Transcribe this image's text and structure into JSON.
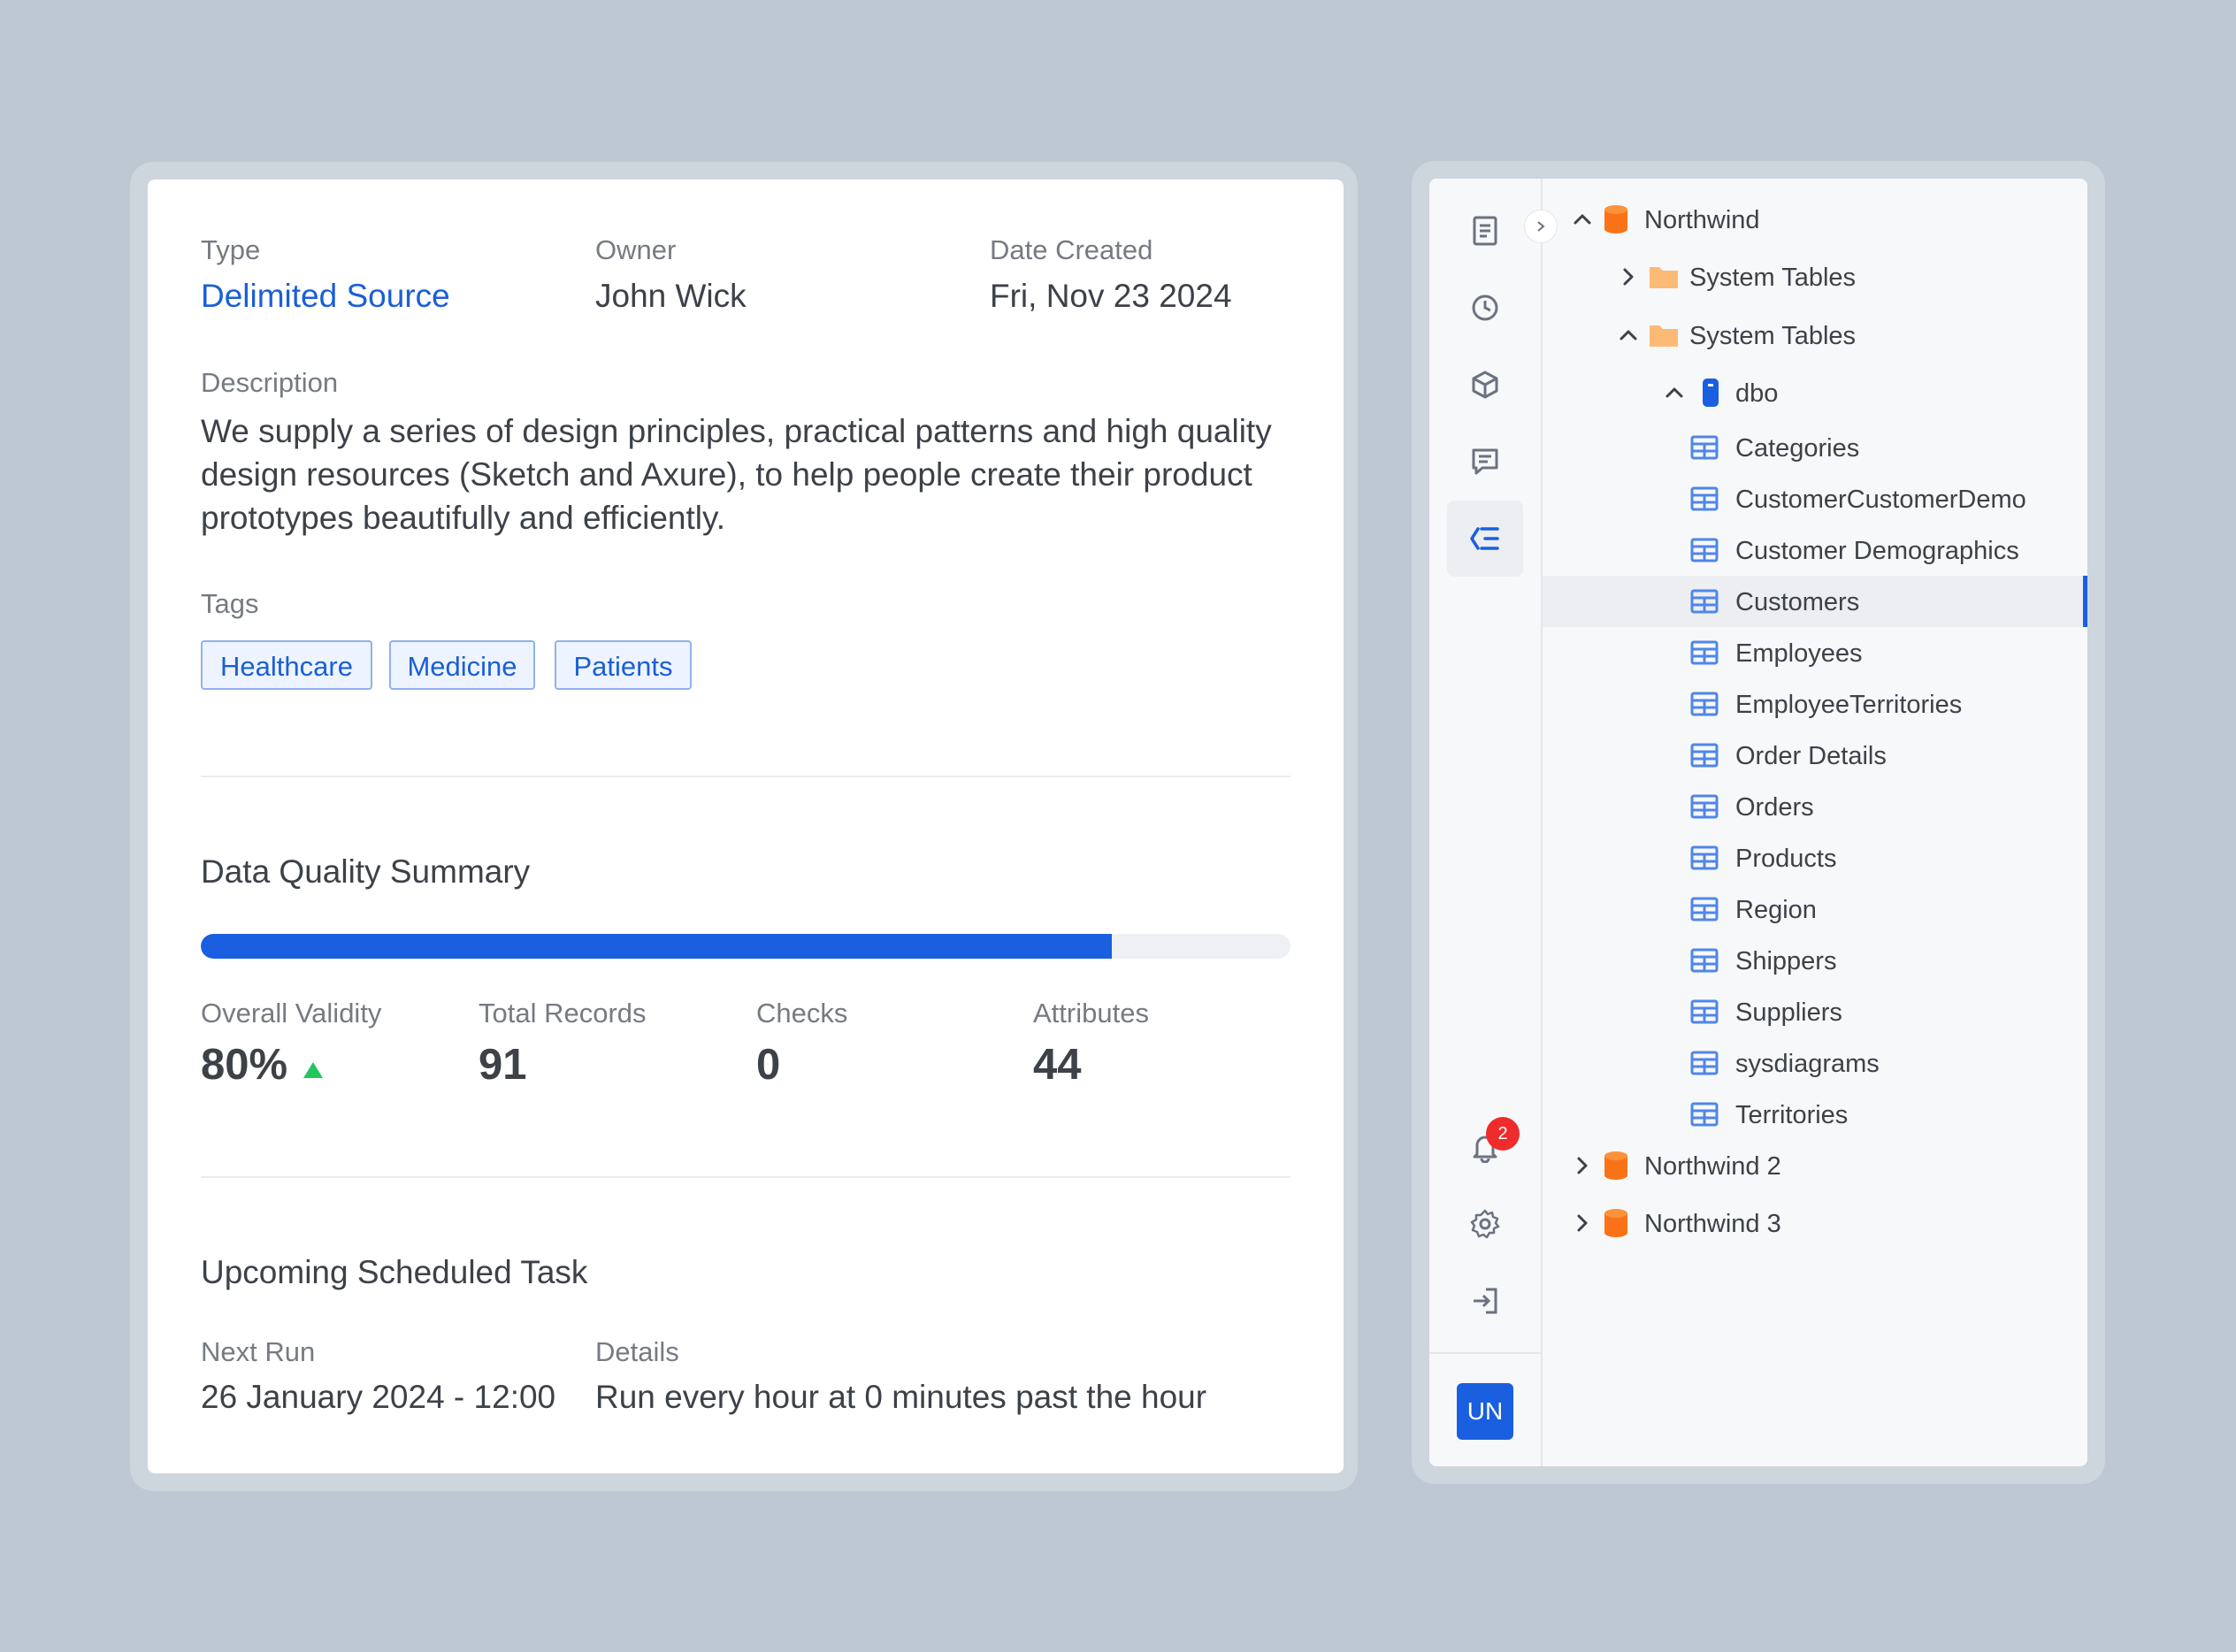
{
  "details": {
    "type": {
      "label": "Type",
      "value": "Delimited Source"
    },
    "owner": {
      "label": "Owner",
      "value": "John Wick"
    },
    "date_created": {
      "label": "Date Created",
      "value": "Fri, Nov 23 2024"
    },
    "description": {
      "label": "Description",
      "value": "We supply a series of design principles, practical patterns and high quality design resources (Sketch and Axure), to help people create their product prototypes beautifully and efficiently."
    },
    "tags": {
      "label": "Tags",
      "items": [
        "Healthcare",
        "Medicine",
        "Patients"
      ]
    }
  },
  "quality": {
    "title": "Data Quality Summary",
    "progress_percent": 83.6,
    "stats": [
      {
        "label": "Overall Validity",
        "value": "80%",
        "trend": "up"
      },
      {
        "label": "Total Records",
        "value": "91"
      },
      {
        "label": "Checks",
        "value": "0"
      },
      {
        "label": "Attributes",
        "value": "44"
      }
    ]
  },
  "schedule": {
    "title": "Upcoming Scheduled Task",
    "next_run": {
      "label": "Next Run",
      "value": "26 January 2024 - 12:00"
    },
    "details": {
      "label": "Details",
      "value": "Run every hour at 0 minutes past the hour"
    }
  },
  "rail": {
    "icons": [
      "document-icon",
      "clock-icon",
      "cube-icon",
      "message-icon",
      "tree-icon"
    ],
    "bottom_icons": [
      "bell-icon",
      "gear-icon",
      "logout-icon"
    ],
    "notification_count": "2",
    "avatar": "UN"
  },
  "tree": {
    "databases": [
      {
        "name": "Northwind",
        "expanded": true
      },
      {
        "name": "Northwind 2",
        "expanded": false
      },
      {
        "name": "Northwind 3",
        "expanded": false
      }
    ],
    "folders": [
      {
        "name": "System Tables",
        "expanded": false
      },
      {
        "name": "System Tables",
        "expanded": true
      }
    ],
    "schema": {
      "name": "dbo",
      "expanded": true
    },
    "tables": [
      "Categories",
      "CustomerCustomerDemo",
      "Customer Demographics",
      "Customers",
      "Employees",
      "EmployeeTerritories",
      "Order Details",
      "Orders",
      "Products",
      "Region",
      "Shippers",
      "Suppliers",
      "sysdiagrams",
      "Territories"
    ],
    "selected_table": "Customers"
  },
  "colors": {
    "accent": "#1a5fe0",
    "link": "#1a5fd6",
    "database": "#f97316",
    "folder": "#fdba74",
    "table": "#4f86e8",
    "trend_up": "#22c55e",
    "badge": "#ef2b2b",
    "background": "#bec8d2"
  }
}
